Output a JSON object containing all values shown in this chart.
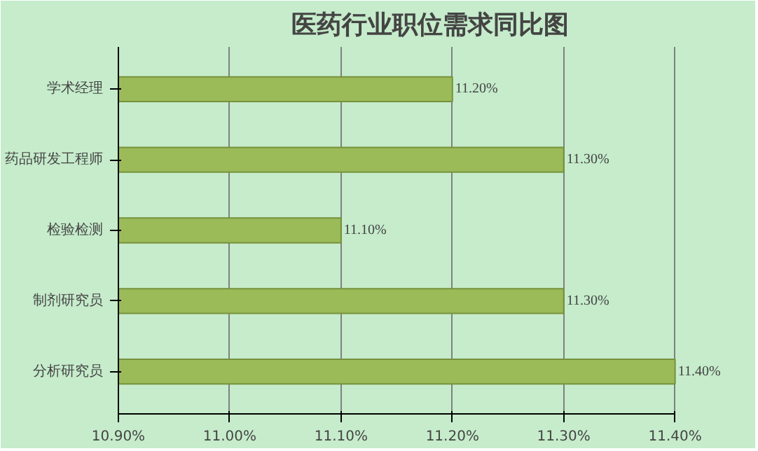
{
  "chart_data": {
    "type": "bar",
    "orientation": "horizontal",
    "title": "医药行业职位需求同比图",
    "categories": [
      "学术经理",
      "药品研发工程师",
      "检验检测",
      "制剂研究员",
      "分析研究员"
    ],
    "values": [
      11.2,
      11.3,
      11.1,
      11.3,
      11.4
    ],
    "value_labels": [
      "11.20%",
      "11.30%",
      "11.10%",
      "11.30%",
      "11.40%"
    ],
    "color": "#9bbb59",
    "xlim": [
      10.9,
      11.4
    ],
    "xticks": [
      {
        "value": 10.9,
        "label": "10.90%"
      },
      {
        "value": 11.0,
        "label": "11.00%"
      },
      {
        "value": 11.1,
        "label": "11.10%"
      },
      {
        "value": 11.2,
        "label": "11.20%"
      },
      {
        "value": 11.3,
        "label": "11.30%"
      },
      {
        "value": 11.4,
        "label": "11.40%"
      }
    ],
    "grid": "x",
    "legend": false
  }
}
